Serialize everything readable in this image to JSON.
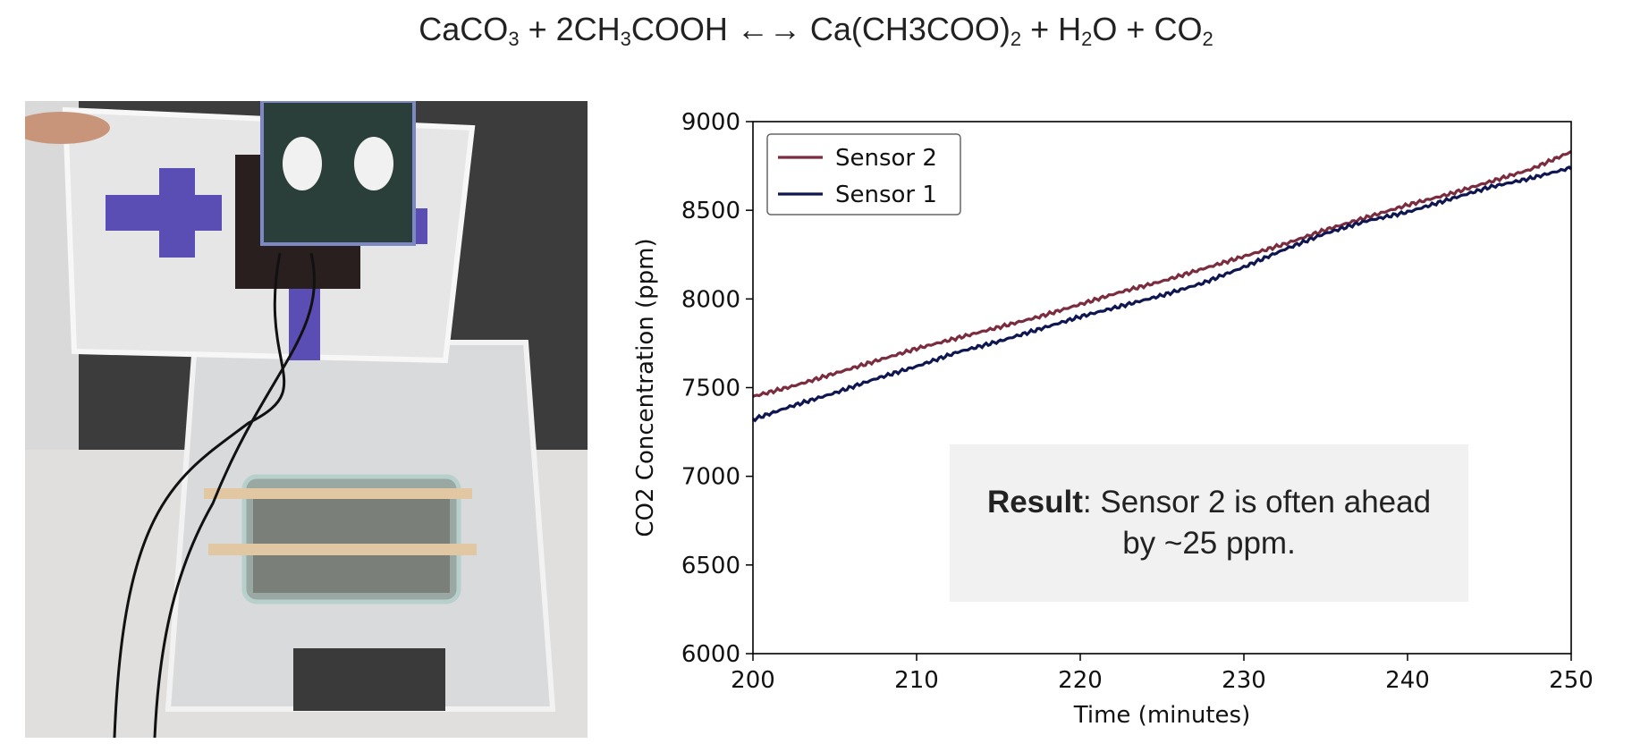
{
  "equation": {
    "parts": [
      {
        "t": "CaCO"
      },
      {
        "s": "3"
      },
      {
        "t": " + 2CH"
      },
      {
        "s": "3"
      },
      {
        "t": "COOH ←→  Ca(CH3COO)"
      },
      {
        "s": "2"
      },
      {
        "t": " + H"
      },
      {
        "s": "2"
      },
      {
        "t": "O + CO"
      },
      {
        "s": "2"
      }
    ]
  },
  "result": {
    "label": "Result",
    "line1": ": Sensor 2 is often ahead",
    "line2": "by ~25 ppm."
  },
  "colors": {
    "sensor2": "#7b2d40",
    "sensor1": "#0f1650",
    "result_bg": "#f1f1f1"
  },
  "photo": {
    "icon": "experiment-setup-photo"
  },
  "chart_data": {
    "type": "line",
    "xlabel": "Time (minutes)",
    "ylabel": "CO2 Concentration (ppm)",
    "xlim": [
      200,
      250
    ],
    "ylim": [
      6000,
      9000
    ],
    "xticks": [
      200,
      210,
      220,
      230,
      240,
      250
    ],
    "yticks": [
      6000,
      6500,
      7000,
      7500,
      8000,
      8500,
      9000
    ],
    "grid": false,
    "legend_position": "upper-left",
    "series": [
      {
        "name": "Sensor 2",
        "color": "#7b2d40",
        "x": [
          200,
          202.5,
          205,
          207.5,
          210,
          212.5,
          215,
          217.5,
          220,
          222.5,
          225,
          227.5,
          230,
          232.5,
          235,
          237.5,
          240,
          242.5,
          245,
          247.5,
          250
        ],
        "y": [
          7450,
          7510,
          7580,
          7650,
          7720,
          7780,
          7840,
          7900,
          7970,
          8040,
          8100,
          8170,
          8240,
          8310,
          8390,
          8460,
          8530,
          8590,
          8660,
          8730,
          8830
        ]
      },
      {
        "name": "Sensor 1",
        "color": "#0f1650",
        "x": [
          200,
          202.5,
          205,
          207.5,
          210,
          212.5,
          215,
          217.5,
          220,
          222.5,
          225,
          227.5,
          230,
          232.5,
          235,
          237.5,
          240,
          242.5,
          245,
          247.5,
          250
        ],
        "y": [
          7320,
          7400,
          7470,
          7550,
          7620,
          7700,
          7760,
          7830,
          7900,
          7960,
          8020,
          8090,
          8180,
          8280,
          8370,
          8440,
          8490,
          8560,
          8630,
          8680,
          8740
        ]
      }
    ]
  }
}
